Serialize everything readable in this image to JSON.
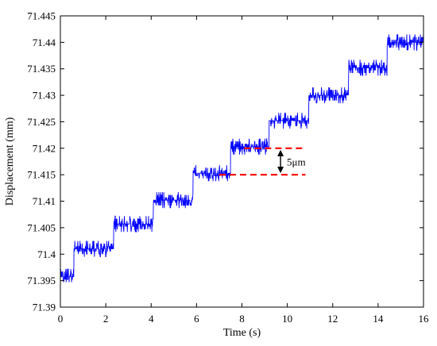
{
  "chart_data": {
    "type": "line",
    "title": "",
    "xlabel": "Time (s)",
    "ylabel": "Displacement (mm)",
    "xlim": [
      0,
      16
    ],
    "ylim": [
      71.39,
      71.445
    ],
    "xticks": [
      "0",
      "2",
      "4",
      "6",
      "8",
      "10",
      "12",
      "14",
      "16"
    ],
    "yticks": [
      "71.39",
      "71.395",
      "71.4",
      "71.405",
      "71.41",
      "71.415",
      "71.42",
      "71.425",
      "71.43",
      "71.435",
      "71.44",
      "71.445"
    ],
    "grid": false,
    "series": [
      {
        "color": "#0000ff",
        "steps": [
          {
            "t_start": 0.0,
            "t_end": 0.6,
            "level": 71.3957
          },
          {
            "t_start": 0.6,
            "t_end": 2.35,
            "level": 71.401
          },
          {
            "t_start": 2.35,
            "t_end": 4.1,
            "level": 71.4057
          },
          {
            "t_start": 4.1,
            "t_end": 5.85,
            "level": 71.4102
          },
          {
            "t_start": 5.85,
            "t_end": 7.5,
            "level": 71.4153
          },
          {
            "t_start": 7.5,
            "t_end": 9.2,
            "level": 71.4203
          },
          {
            "t_start": 9.2,
            "t_end": 10.95,
            "level": 71.4252
          },
          {
            "t_start": 10.95,
            "t_end": 12.7,
            "level": 71.43
          },
          {
            "t_start": 12.7,
            "t_end": 14.4,
            "level": 71.4352
          },
          {
            "t_start": 14.4,
            "t_end": 16.0,
            "level": 71.44
          }
        ],
        "noise_amplitude": 0.0015
      }
    ],
    "annotation": {
      "label": "5μm",
      "upper_line": {
        "x_start": 8.1,
        "x_end": 10.8,
        "y": 71.42
      },
      "lower_line": {
        "x_start": 7.0,
        "x_end": 10.8,
        "y": 71.415
      },
      "arrow_x": 9.7,
      "line_color": "#ff0000"
    }
  }
}
